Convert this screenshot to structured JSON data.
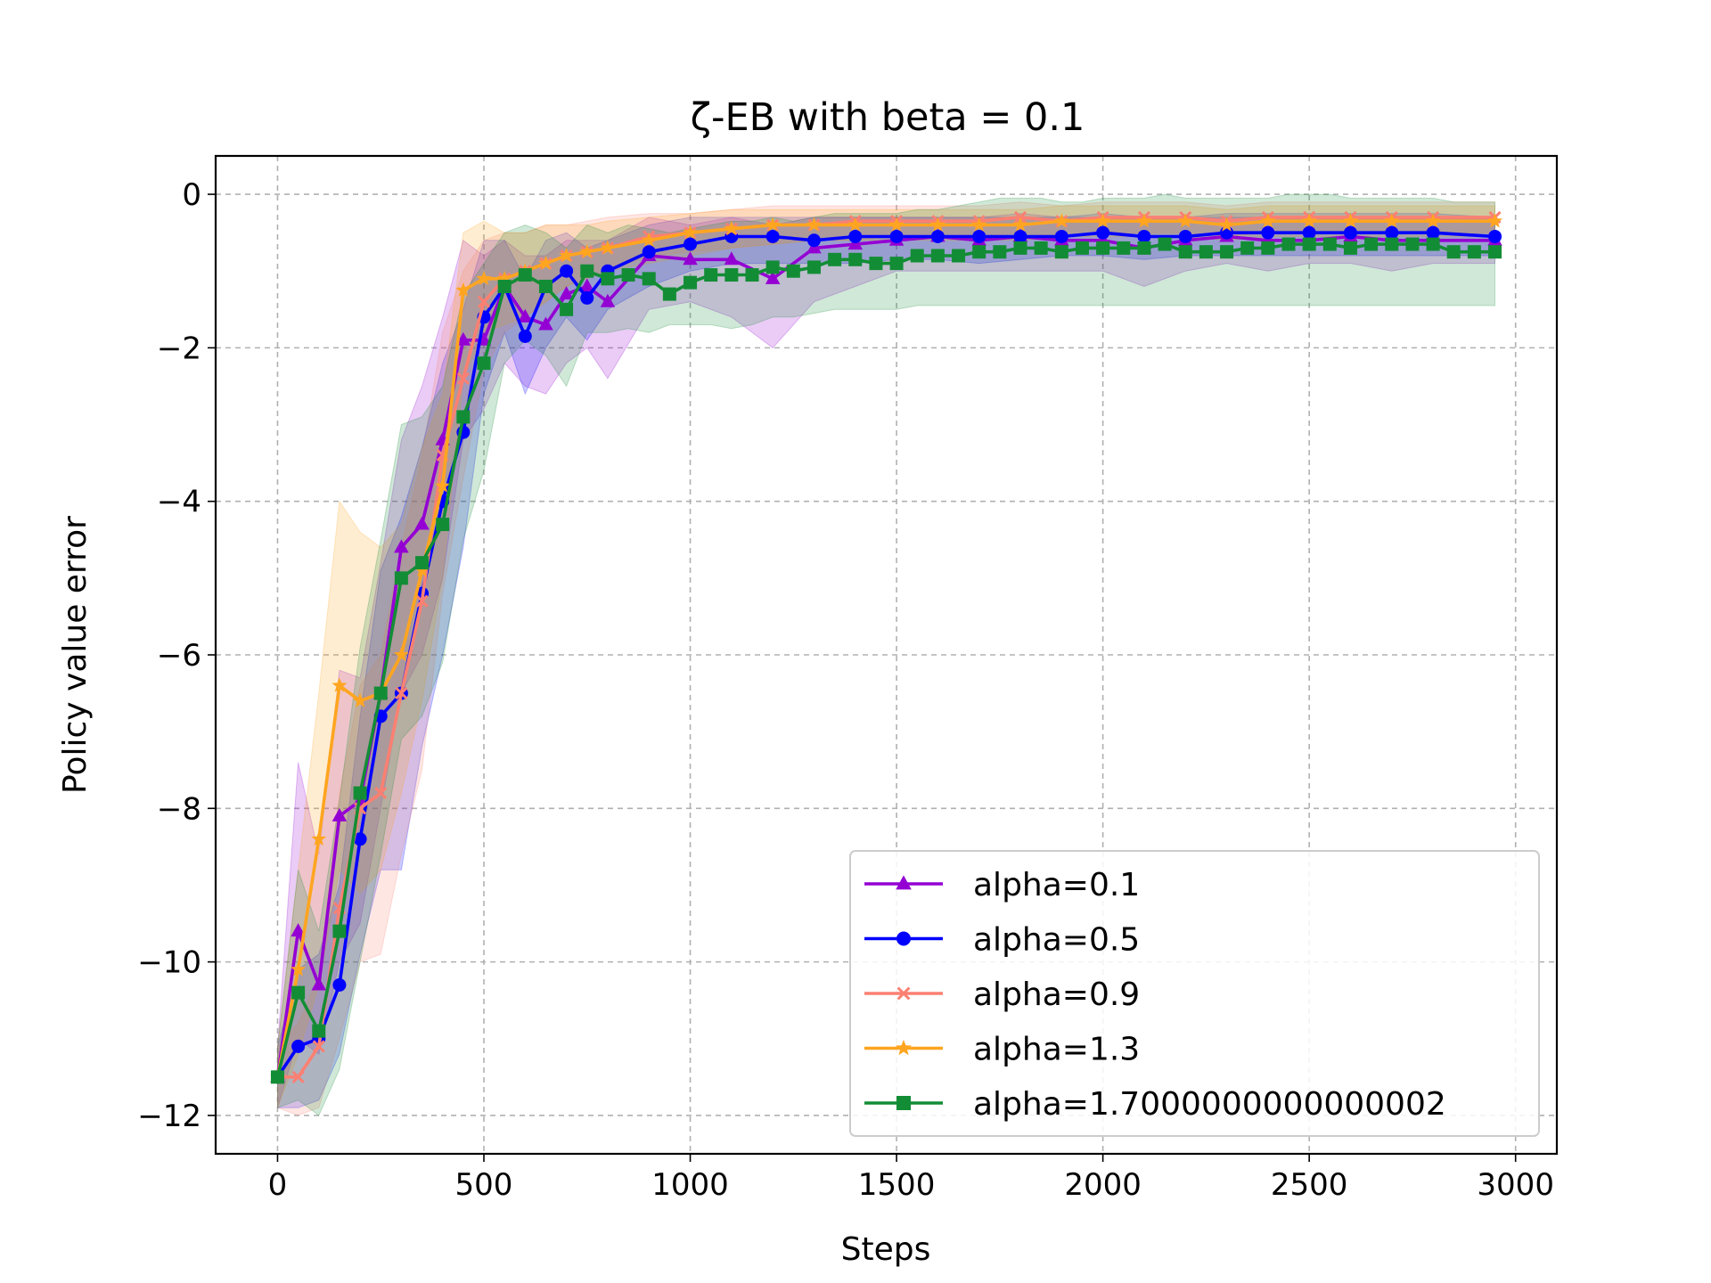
{
  "chart_data": {
    "type": "line",
    "title": "ζ-EB with beta = 0.1",
    "xlabel": "Steps",
    "ylabel": "Policy value error",
    "xlim": [
      -150,
      3100
    ],
    "ylim": [
      -12.5,
      0.5
    ],
    "xticks": [
      0,
      500,
      1000,
      1500,
      2000,
      2500,
      3000
    ],
    "xtick_labels": [
      "0",
      "500",
      "1000",
      "1500",
      "2000",
      "2500",
      "3000"
    ],
    "yticks": [
      0,
      -2,
      -4,
      -6,
      -8,
      -10,
      -12
    ],
    "ytick_labels": [
      "0",
      "−2",
      "−4",
      "−6",
      "−8",
      "−10",
      "−12"
    ],
    "grid": true,
    "legend_position": "lower-right",
    "series": [
      {
        "name": "alpha=0.1",
        "color": "#9400D3",
        "marker": "triangle",
        "x": [
          0,
          50,
          100,
          150,
          200,
          250,
          300,
          350,
          400,
          450,
          500,
          550,
          600,
          650,
          700,
          750,
          800,
          900,
          1000,
          1100,
          1200,
          1300,
          1400,
          1500,
          1600,
          1700,
          1800,
          1900,
          2000,
          2100,
          2200,
          2300,
          2400,
          2500,
          2600,
          2700,
          2800,
          2950
        ],
        "y": [
          -11.5,
          -9.6,
          -10.3,
          -8.1,
          -7.9,
          -6.5,
          -4.6,
          -4.3,
          -3.2,
          -1.9,
          -1.9,
          -1.2,
          -1.6,
          -1.7,
          -1.3,
          -1.2,
          -1.4,
          -0.8,
          -0.85,
          -0.85,
          -1.1,
          -0.7,
          -0.65,
          -0.6,
          -0.55,
          -0.6,
          -0.55,
          -0.6,
          -0.6,
          -0.7,
          -0.6,
          -0.55,
          -0.6,
          -0.6,
          -0.55,
          -0.6,
          -0.6,
          -0.6
        ],
        "lower": [
          -11.9,
          -11.0,
          -11.2,
          -10.0,
          -9.5,
          -8.0,
          -6.5,
          -6.0,
          -5.0,
          -3.2,
          -2.8,
          -2.2,
          -2.5,
          -2.6,
          -2.2,
          -2.0,
          -2.4,
          -1.5,
          -1.4,
          -1.6,
          -2.0,
          -1.4,
          -1.2,
          -1.0,
          -1.0,
          -1.0,
          -1.0,
          -1.0,
          -1.0,
          -1.2,
          -1.0,
          -0.9,
          -1.0,
          -0.9,
          -0.9,
          -1.0,
          -0.9,
          -0.9
        ],
        "upper": [
          -11.1,
          -7.4,
          -8.6,
          -6.2,
          -6.3,
          -4.8,
          -3.2,
          -2.5,
          -1.6,
          -0.6,
          -0.8,
          -0.6,
          -0.8,
          -0.8,
          -0.6,
          -0.6,
          -0.6,
          -0.3,
          -0.4,
          -0.3,
          -0.4,
          -0.3,
          -0.3,
          -0.3,
          -0.3,
          -0.3,
          -0.25,
          -0.3,
          -0.3,
          -0.3,
          -0.3,
          -0.3,
          -0.3,
          -0.3,
          -0.3,
          -0.3,
          -0.3,
          -0.3
        ]
      },
      {
        "name": "alpha=0.5",
        "color": "#0000FF",
        "marker": "circle",
        "x": [
          0,
          50,
          100,
          150,
          200,
          250,
          300,
          350,
          400,
          450,
          500,
          550,
          600,
          650,
          700,
          750,
          800,
          900,
          1000,
          1100,
          1200,
          1300,
          1400,
          1500,
          1600,
          1700,
          1800,
          1900,
          2000,
          2100,
          2200,
          2300,
          2400,
          2500,
          2600,
          2700,
          2800,
          2950
        ],
        "y": [
          -11.5,
          -11.1,
          -11.0,
          -10.3,
          -8.4,
          -6.8,
          -6.5,
          -5.2,
          -4.0,
          -3.1,
          -1.6,
          -1.2,
          -1.85,
          -1.2,
          -1.0,
          -1.35,
          -1.0,
          -0.75,
          -0.65,
          -0.55,
          -0.55,
          -0.6,
          -0.55,
          -0.55,
          -0.55,
          -0.55,
          -0.55,
          -0.55,
          -0.5,
          -0.55,
          -0.55,
          -0.5,
          -0.5,
          -0.5,
          -0.5,
          -0.5,
          -0.5,
          -0.55
        ],
        "lower": [
          -11.9,
          -11.9,
          -11.8,
          -11.2,
          -9.9,
          -8.8,
          -8.8,
          -7.2,
          -6.0,
          -4.6,
          -2.6,
          -1.8,
          -2.6,
          -2.0,
          -1.6,
          -1.9,
          -1.5,
          -1.2,
          -1.0,
          -0.9,
          -0.9,
          -0.9,
          -0.9,
          -0.85,
          -0.85,
          -0.9,
          -0.85,
          -0.8,
          -0.8,
          -0.85,
          -0.8,
          -0.8,
          -0.8,
          -0.8,
          -0.8,
          -0.8,
          -0.8,
          -0.8
        ],
        "upper": [
          -11.1,
          -10.1,
          -9.9,
          -9.0,
          -6.8,
          -4.9,
          -4.2,
          -3.3,
          -2.2,
          -1.5,
          -0.6,
          -0.6,
          -1.1,
          -0.6,
          -0.5,
          -0.7,
          -0.6,
          -0.4,
          -0.3,
          -0.3,
          -0.3,
          -0.3,
          -0.3,
          -0.3,
          -0.3,
          -0.3,
          -0.3,
          -0.3,
          -0.25,
          -0.3,
          -0.3,
          -0.25,
          -0.25,
          -0.25,
          -0.25,
          -0.25,
          -0.25,
          -0.3
        ]
      },
      {
        "name": "alpha=0.9",
        "color": "#FA8072",
        "marker": "x",
        "x": [
          0,
          50,
          100,
          150,
          200,
          250,
          300,
          350,
          400,
          450,
          500,
          550,
          600,
          650,
          700,
          750,
          800,
          900,
          1000,
          1100,
          1200,
          1300,
          1400,
          1500,
          1600,
          1700,
          1800,
          1900,
          2000,
          2100,
          2200,
          2300,
          2400,
          2500,
          2600,
          2700,
          2800,
          2950
        ],
        "y": [
          -11.5,
          -11.5,
          -11.1,
          -9.3,
          -8.0,
          -7.8,
          -6.5,
          -5.3,
          -3.4,
          -2.4,
          -1.4,
          -1.1,
          -1.0,
          -0.9,
          -0.8,
          -0.75,
          -0.7,
          -0.55,
          -0.5,
          -0.45,
          -0.4,
          -0.4,
          -0.35,
          -0.35,
          -0.35,
          -0.35,
          -0.3,
          -0.35,
          -0.3,
          -0.3,
          -0.3,
          -0.35,
          -0.3,
          -0.3,
          -0.3,
          -0.3,
          -0.3,
          -0.3
        ],
        "lower": [
          -11.9,
          -12.0,
          -11.9,
          -11.0,
          -10.0,
          -9.9,
          -8.6,
          -7.5,
          -5.2,
          -3.7,
          -2.3,
          -1.8,
          -1.6,
          -1.4,
          -1.2,
          -1.1,
          -1.0,
          -0.8,
          -0.75,
          -0.7,
          -0.65,
          -0.6,
          -0.6,
          -0.55,
          -0.55,
          -0.55,
          -0.5,
          -0.55,
          -0.5,
          -0.5,
          -0.5,
          -0.55,
          -0.5,
          -0.5,
          -0.5,
          -0.5,
          -0.5,
          -0.5
        ],
        "upper": [
          -11.1,
          -10.8,
          -10.2,
          -7.8,
          -6.4,
          -6.0,
          -4.6,
          -3.4,
          -1.8,
          -1.0,
          -0.6,
          -0.5,
          -0.5,
          -0.4,
          -0.4,
          -0.35,
          -0.3,
          -0.25,
          -0.25,
          -0.2,
          -0.15,
          -0.15,
          -0.15,
          -0.15,
          -0.15,
          -0.15,
          -0.1,
          -0.15,
          -0.1,
          -0.1,
          -0.1,
          -0.15,
          -0.1,
          -0.1,
          -0.1,
          -0.1,
          -0.1,
          -0.1
        ]
      },
      {
        "name": "alpha=1.3",
        "color": "#FFA520",
        "marker": "star",
        "x": [
          0,
          50,
          100,
          150,
          200,
          250,
          300,
          350,
          400,
          450,
          500,
          550,
          600,
          650,
          700,
          750,
          800,
          900,
          1000,
          1100,
          1200,
          1300,
          1400,
          1500,
          1600,
          1700,
          1800,
          1900,
          2000,
          2100,
          2200,
          2300,
          2400,
          2500,
          2600,
          2700,
          2800,
          2950
        ],
        "y": [
          -11.5,
          -10.1,
          -8.4,
          -6.4,
          -6.6,
          -6.5,
          -6.0,
          -4.9,
          -3.8,
          -1.25,
          -1.1,
          -1.1,
          -1.0,
          -0.9,
          -0.8,
          -0.75,
          -0.7,
          -0.6,
          -0.5,
          -0.45,
          -0.4,
          -0.4,
          -0.4,
          -0.4,
          -0.4,
          -0.4,
          -0.4,
          -0.35,
          -0.35,
          -0.35,
          -0.35,
          -0.4,
          -0.35,
          -0.35,
          -0.35,
          -0.35,
          -0.35,
          -0.35
        ],
        "lower": [
          -11.9,
          -11.2,
          -10.3,
          -8.8,
          -9.1,
          -8.8,
          -7.8,
          -6.6,
          -5.0,
          -2.4,
          -1.8,
          -1.7,
          -1.6,
          -1.4,
          -1.2,
          -1.1,
          -1.0,
          -0.9,
          -0.8,
          -0.7,
          -0.65,
          -0.6,
          -0.6,
          -0.6,
          -0.6,
          -0.6,
          -0.6,
          -0.55,
          -0.55,
          -0.55,
          -0.55,
          -0.6,
          -0.55,
          -0.55,
          -0.55,
          -0.55,
          -0.55,
          -0.55
        ],
        "upper": [
          -11.1,
          -8.8,
          -6.5,
          -4.0,
          -4.4,
          -4.6,
          -4.3,
          -3.3,
          -2.6,
          -0.5,
          -0.35,
          -0.5,
          -0.5,
          -0.4,
          -0.4,
          -0.4,
          -0.35,
          -0.3,
          -0.25,
          -0.2,
          -0.2,
          -0.2,
          -0.2,
          -0.2,
          -0.2,
          -0.2,
          -0.2,
          -0.15,
          -0.15,
          -0.15,
          -0.15,
          -0.2,
          -0.15,
          -0.15,
          -0.15,
          -0.15,
          -0.15,
          -0.15
        ]
      },
      {
        "name": "alpha=1.7000000000000002",
        "color": "#138D35",
        "marker": "square",
        "x": [
          0,
          50,
          100,
          150,
          200,
          250,
          300,
          350,
          400,
          450,
          500,
          550,
          600,
          650,
          700,
          750,
          800,
          850,
          900,
          950,
          1000,
          1050,
          1100,
          1150,
          1200,
          1250,
          1300,
          1350,
          1400,
          1450,
          1500,
          1550,
          1600,
          1650,
          1700,
          1750,
          1800,
          1850,
          1900,
          1950,
          2000,
          2050,
          2100,
          2150,
          2200,
          2250,
          2300,
          2350,
          2400,
          2450,
          2500,
          2550,
          2600,
          2650,
          2700,
          2750,
          2800,
          2850,
          2900,
          2950
        ],
        "y": [
          -11.5,
          -10.4,
          -10.9,
          -9.6,
          -7.8,
          -6.5,
          -5.0,
          -4.8,
          -4.3,
          -2.9,
          -2.2,
          -1.2,
          -1.05,
          -1.2,
          -1.5,
          -1.0,
          -1.1,
          -1.05,
          -1.1,
          -1.3,
          -1.15,
          -1.05,
          -1.05,
          -1.05,
          -0.95,
          -1.0,
          -0.95,
          -0.85,
          -0.85,
          -0.9,
          -0.9,
          -0.8,
          -0.8,
          -0.8,
          -0.75,
          -0.75,
          -0.7,
          -0.7,
          -0.75,
          -0.7,
          -0.7,
          -0.7,
          -0.7,
          -0.65,
          -0.75,
          -0.75,
          -0.75,
          -0.7,
          -0.7,
          -0.65,
          -0.65,
          -0.65,
          -0.7,
          -0.65,
          -0.65,
          -0.65,
          -0.65,
          -0.75,
          -0.75,
          -0.75
        ],
        "lower": [
          -11.9,
          -11.8,
          -12.0,
          -11.4,
          -10.0,
          -8.6,
          -7.1,
          -6.8,
          -6.1,
          -4.5,
          -3.6,
          -2.2,
          -1.9,
          -2.1,
          -2.5,
          -1.8,
          -1.8,
          -1.75,
          -1.8,
          -1.7,
          -1.7,
          -1.7,
          -1.75,
          -1.7,
          -1.6,
          -1.6,
          -1.55,
          -1.5,
          -1.5,
          -1.5,
          -1.5,
          -1.45,
          -1.45,
          -1.45,
          -1.45,
          -1.45,
          -1.45,
          -1.45,
          -1.45,
          -1.45,
          -1.45,
          -1.45,
          -1.45,
          -1.45,
          -1.45,
          -1.45,
          -1.45,
          -1.45,
          -1.45,
          -1.45,
          -1.45,
          -1.45,
          -1.45,
          -1.45,
          -1.45,
          -1.45,
          -1.45,
          -1.45,
          -1.45,
          -1.45
        ],
        "upper": [
          -11.1,
          -8.8,
          -9.6,
          -7.9,
          -5.9,
          -4.5,
          -3.0,
          -2.9,
          -2.5,
          -1.3,
          -0.9,
          -0.5,
          -0.4,
          -0.5,
          -0.7,
          -0.4,
          -0.5,
          -0.4,
          -0.45,
          -0.5,
          -0.45,
          -0.4,
          -0.35,
          -0.35,
          -0.3,
          -0.35,
          -0.3,
          -0.25,
          -0.25,
          -0.25,
          -0.25,
          -0.2,
          -0.2,
          -0.15,
          -0.1,
          -0.05,
          -0.05,
          -0.05,
          -0.1,
          -0.1,
          -0.05,
          -0.05,
          -0.05,
          0.0,
          -0.05,
          -0.05,
          -0.05,
          -0.05,
          -0.05,
          0.0,
          0.0,
          0.0,
          -0.05,
          -0.05,
          -0.05,
          -0.05,
          -0.05,
          -0.1,
          -0.1,
          -0.1
        ]
      }
    ]
  }
}
